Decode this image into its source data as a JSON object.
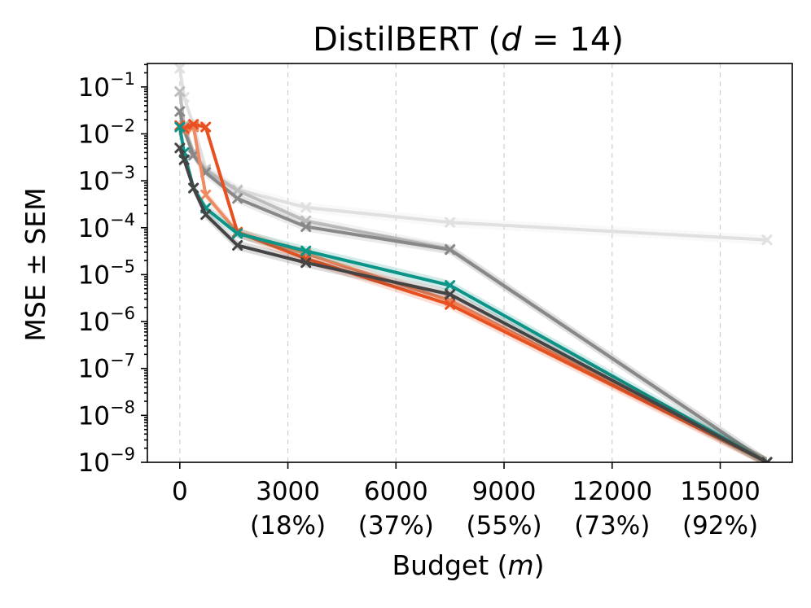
{
  "chart_data": {
    "type": "line",
    "title": "DistilBERT (",
    "title_var": "d",
    "title_eq": " = 14)",
    "xlabel": "Budget (",
    "xlabel_var": "m",
    "xlabel_end": ")",
    "ylabel": "MSE ± SEM",
    "xlim": [
      -900,
      17000
    ],
    "ylim_log10": [
      -9,
      -0.5
    ],
    "y_scale": "log",
    "grid": "x-dashed",
    "x_ticks": [
      {
        "value": 0,
        "label": "0",
        "sub": ""
      },
      {
        "value": 3000,
        "label": "3000",
        "sub": "(18%)"
      },
      {
        "value": 6000,
        "label": "6000",
        "sub": "(37%)"
      },
      {
        "value": 9000,
        "label": "9000",
        "sub": "(55%)"
      },
      {
        "value": 12000,
        "label": "12000",
        "sub": "(73%)"
      },
      {
        "value": 15000,
        "label": "15000",
        "sub": "(92%)"
      }
    ],
    "y_ticks": [
      {
        "value": -9,
        "base": "10",
        "exp": "−9"
      },
      {
        "value": -8,
        "base": "10",
        "exp": "−8"
      },
      {
        "value": -7,
        "base": "10",
        "exp": "−7"
      },
      {
        "value": -6,
        "base": "10",
        "exp": "−6"
      },
      {
        "value": -5,
        "base": "10",
        "exp": "−5"
      },
      {
        "value": -4,
        "base": "10",
        "exp": "−4"
      },
      {
        "value": -3,
        "base": "10",
        "exp": "−3"
      },
      {
        "value": -2,
        "base": "10",
        "exp": "−2"
      },
      {
        "value": -1,
        "base": "10",
        "exp": "−1"
      }
    ],
    "series": [
      {
        "color": "#e0e0e0",
        "x": [
          0,
          120,
          380,
          720,
          1600,
          3500,
          7500,
          16300
        ],
        "y": [
          0.25,
          0.06,
          0.015,
          0.0018,
          0.00065,
          0.00027,
          0.00013,
          5.5e-05
        ]
      },
      {
        "color": "#bdbdbd",
        "x": [
          0,
          120,
          380,
          720,
          1600,
          3500,
          7500,
          16300
        ],
        "y": [
          0.08,
          0.015,
          0.004,
          0.0017,
          0.00062,
          0.00014,
          3.5e-05,
          1e-09
        ]
      },
      {
        "color": "#888888",
        "x": [
          0,
          120,
          380,
          720,
          1600,
          3500,
          7500,
          16300
        ],
        "y": [
          0.03,
          0.012,
          0.0035,
          0.0015,
          0.00042,
          0.000105,
          3.4e-05,
          1e-09
        ]
      },
      {
        "color": "#ef8a62",
        "x": [
          0,
          120,
          380,
          720,
          1600,
          3500,
          7500,
          16300
        ],
        "y": [
          0.015,
          0.012,
          0.014,
          0.0005,
          8e-05,
          2.8e-05,
          2.8e-06,
          1e-09
        ]
      },
      {
        "color": "#e8501f",
        "x": [
          0,
          120,
          380,
          720,
          1600,
          3500,
          7500,
          16300
        ],
        "y": [
          0.015,
          0.013,
          0.016,
          0.014,
          8e-05,
          2.2e-05,
          2.3e-06,
          1e-09
        ]
      },
      {
        "color": "#0d9488",
        "x": [
          0,
          120,
          380,
          720,
          1600,
          3500,
          7500,
          16300
        ],
        "y": [
          0.014,
          0.004,
          0.0007,
          0.00026,
          7.5e-05,
          3.2e-05,
          5.9e-06,
          1e-09
        ]
      },
      {
        "color": "#444444",
        "x": [
          0,
          120,
          380,
          720,
          1600,
          3500,
          7500,
          16300
        ],
        "y": [
          0.005,
          0.0028,
          0.0007,
          0.00019,
          4.2e-05,
          1.8e-05,
          3.8e-06,
          1e-09
        ]
      }
    ]
  }
}
